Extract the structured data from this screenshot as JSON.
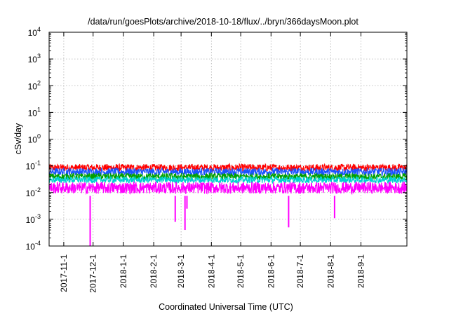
{
  "chart_data": {
    "type": "line",
    "title": "/data/run/goesPlots/archive/2018-10-18/flux/../bryn/366daysMoon.plot",
    "xlabel": "Coordinated Universal Time (UTC)",
    "ylabel": "cSv/day",
    "yscale": "log",
    "ylim": [
      0.0001,
      10000
    ],
    "xlim": [
      "2017-10-17",
      "2018-10-18"
    ],
    "y_ticks": [
      {
        "value": 0.0001,
        "base": "10",
        "exp": "-4"
      },
      {
        "value": 0.001,
        "base": "10",
        "exp": "-3"
      },
      {
        "value": 0.01,
        "base": "10",
        "exp": "-2"
      },
      {
        "value": 0.1,
        "base": "10",
        "exp": "-1"
      },
      {
        "value": 1,
        "base": "10",
        "exp": "0"
      },
      {
        "value": 10,
        "base": "10",
        "exp": "1"
      },
      {
        "value": 100,
        "base": "10",
        "exp": "2"
      },
      {
        "value": 1000,
        "base": "10",
        "exp": "3"
      },
      {
        "value": 10000,
        "base": "10",
        "exp": "4"
      }
    ],
    "x_ticks": [
      "2017-11-1",
      "2017-12-1",
      "2018-1-1",
      "2018-2-1",
      "2018-3-1",
      "2018-4-1",
      "2018-5-1",
      "2018-6-1",
      "2018-7-1",
      "2018-8-1",
      "2018-9-1"
    ],
    "grid": true,
    "legend": "none",
    "series": [
      {
        "color": "#ff0000",
        "baseline": 0.085,
        "spread": 0.14
      },
      {
        "color": "#1a53ff",
        "baseline": 0.06,
        "spread": 0.14
      },
      {
        "color": "#00a000",
        "baseline": 0.04,
        "spread": 0.12
      },
      {
        "color": "#00d0d0",
        "baseline": 0.03,
        "spread": 0.12
      },
      {
        "color": "#ff00ff",
        "baseline": 0.015,
        "spread": 0.22
      }
    ],
    "magenta_dips": [
      {
        "date": "2017-11-28",
        "value": 0.0001
      },
      {
        "date": "2018-2-23",
        "value": 0.0008
      },
      {
        "date": "2018-3-5",
        "value": 0.0004
      },
      {
        "date": "2018-3-7",
        "value": 0.0025
      },
      {
        "date": "2018-6-19",
        "value": 0.0005
      },
      {
        "date": "2018-8-5",
        "value": 0.0011
      }
    ]
  }
}
